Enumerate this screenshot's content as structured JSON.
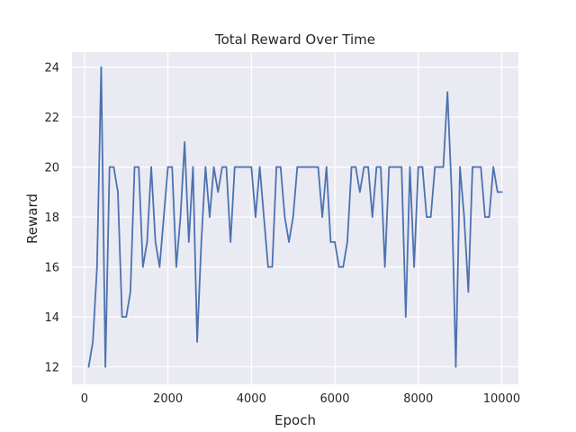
{
  "colors": {
    "plot_background": "#eaeaf2",
    "grid": "#ffffff",
    "series": "#4c72b0",
    "text": "#262626"
  },
  "chart_data": {
    "type": "line",
    "title": "Total Reward Over Time",
    "xlabel": "Epoch",
    "ylabel": "Reward",
    "xlim": [
      -300,
      10400
    ],
    "ylim": [
      11.3,
      24.6
    ],
    "xticks": [
      0,
      2000,
      4000,
      6000,
      8000,
      10000
    ],
    "yticks": [
      12,
      14,
      16,
      18,
      20,
      22,
      24
    ],
    "grid": true,
    "series": [
      {
        "x": [
          100,
          200,
          300,
          400,
          500,
          600,
          700,
          800,
          900,
          1000,
          1100,
          1200,
          1300,
          1400,
          1500,
          1600,
          1700,
          1800,
          1900,
          2000,
          2100,
          2200,
          2300,
          2400,
          2500,
          2600,
          2700,
          2800,
          2900,
          3000,
          3100,
          3200,
          3300,
          3400,
          3500,
          3600,
          3700,
          3800,
          3900,
          4000,
          4100,
          4200,
          4300,
          4400,
          4500,
          4600,
          4700,
          4800,
          4900,
          5000,
          5100,
          5200,
          5300,
          5400,
          5500,
          5600,
          5700,
          5800,
          5900,
          6000,
          6100,
          6200,
          6300,
          6400,
          6500,
          6600,
          6700,
          6800,
          6900,
          7000,
          7100,
          7200,
          7300,
          7400,
          7500,
          7600,
          7700,
          7800,
          7900,
          8000,
          8100,
          8200,
          8300,
          8400,
          8500,
          8600,
          8700,
          8800,
          8900,
          9000,
          9100,
          9200,
          9300,
          9400,
          9500,
          9600,
          9700,
          9800,
          9900,
          10000
        ],
        "values": [
          12,
          13,
          16,
          24,
          12,
          20,
          20,
          19,
          14,
          14,
          15,
          20,
          20,
          16,
          17,
          20,
          17,
          16,
          18,
          20,
          20,
          16,
          18,
          21,
          17,
          20,
          13,
          17,
          20,
          18,
          20,
          19,
          20,
          20,
          17,
          20,
          20,
          20,
          20,
          20,
          18,
          20,
          18,
          16,
          16,
          20,
          20,
          18,
          17,
          18,
          20,
          20,
          20,
          20,
          20,
          20,
          18,
          20,
          17,
          17,
          16,
          16,
          17,
          20,
          20,
          19,
          20,
          20,
          18,
          20,
          20,
          16,
          20,
          20,
          20,
          20,
          14,
          20,
          16,
          20,
          20,
          18,
          18,
          20,
          20,
          20,
          23,
          19,
          12,
          20,
          18,
          15,
          20,
          20,
          20,
          18,
          18,
          20,
          19,
          19
        ]
      }
    ]
  }
}
